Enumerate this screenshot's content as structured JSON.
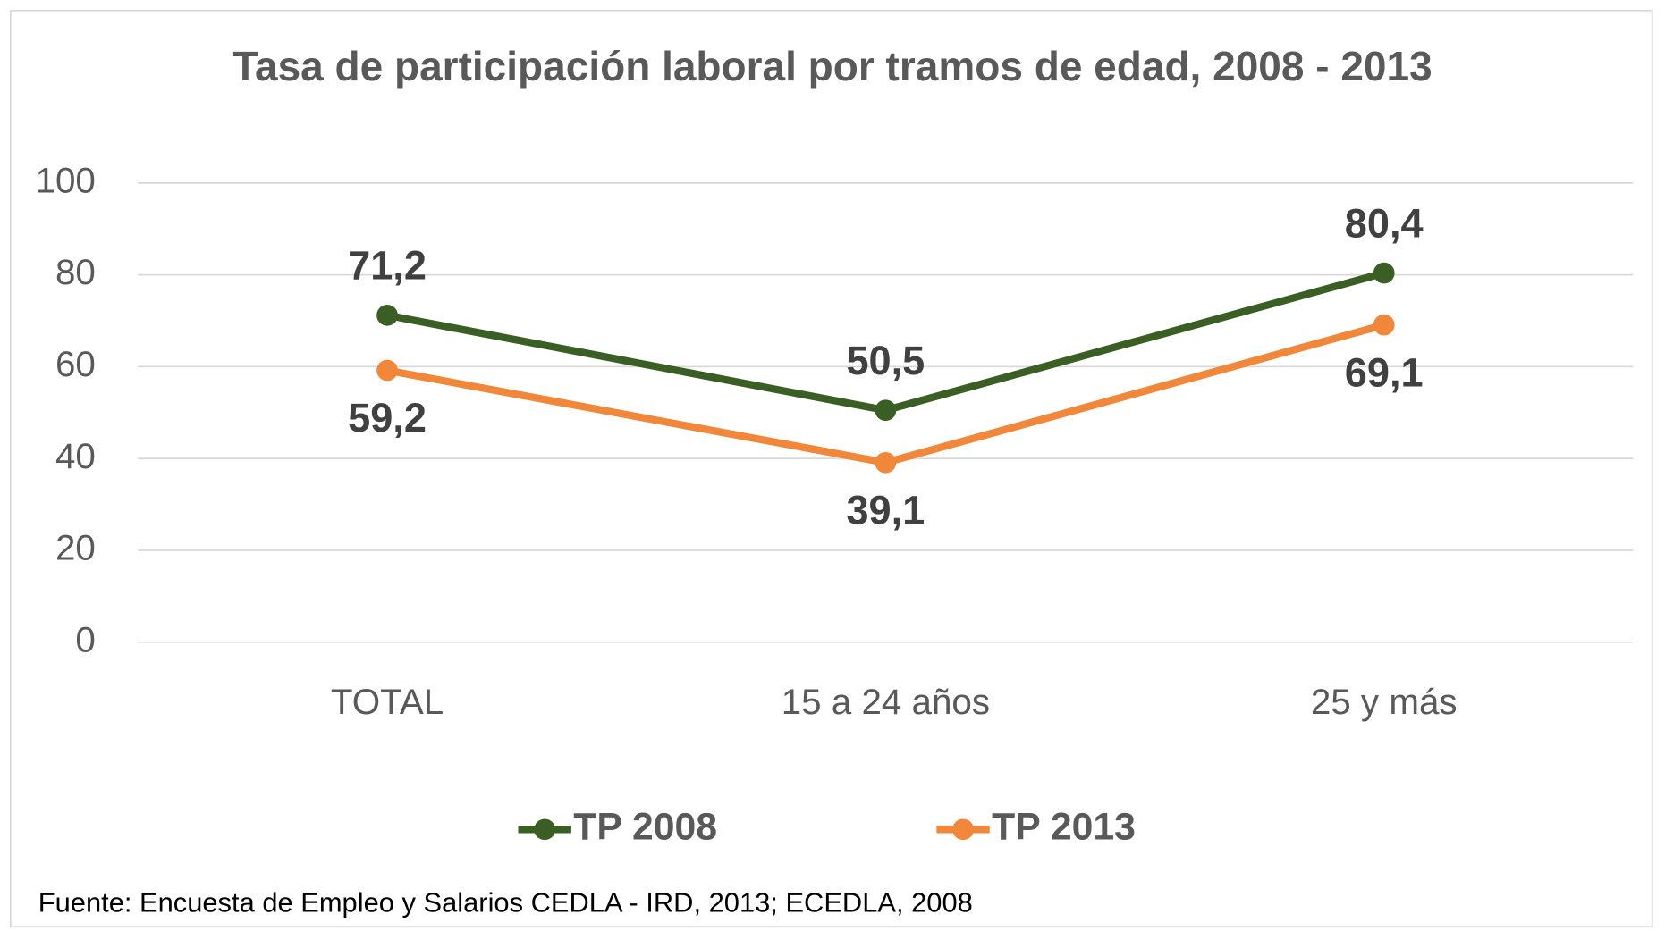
{
  "chart_data": {
    "type": "line",
    "title": "Tasa de participación laboral por tramos de edad, 2008 - 2013",
    "categories": [
      "TOTAL",
      "15 a 24 años",
      "25 y más"
    ],
    "series": [
      {
        "name": "TP 2008",
        "color": "#3b5e24",
        "values": [
          71.2,
          50.5,
          80.4
        ],
        "value_labels": [
          "71,2",
          "50,5",
          "80,4"
        ]
      },
      {
        "name": "TP 2013",
        "color": "#f0873a",
        "values": [
          59.2,
          39.1,
          69.1
        ],
        "value_labels": [
          "59,2",
          "39,1",
          "69,1"
        ]
      }
    ],
    "ylim": [
      0,
      100
    ],
    "yticks": [
      0,
      20,
      40,
      60,
      80,
      100
    ],
    "grid": true,
    "legend": "bottom",
    "source": "Fuente: Encuesta de Empleo y Salarios CEDLA - IRD, 2013; ECEDLA, 2008"
  }
}
